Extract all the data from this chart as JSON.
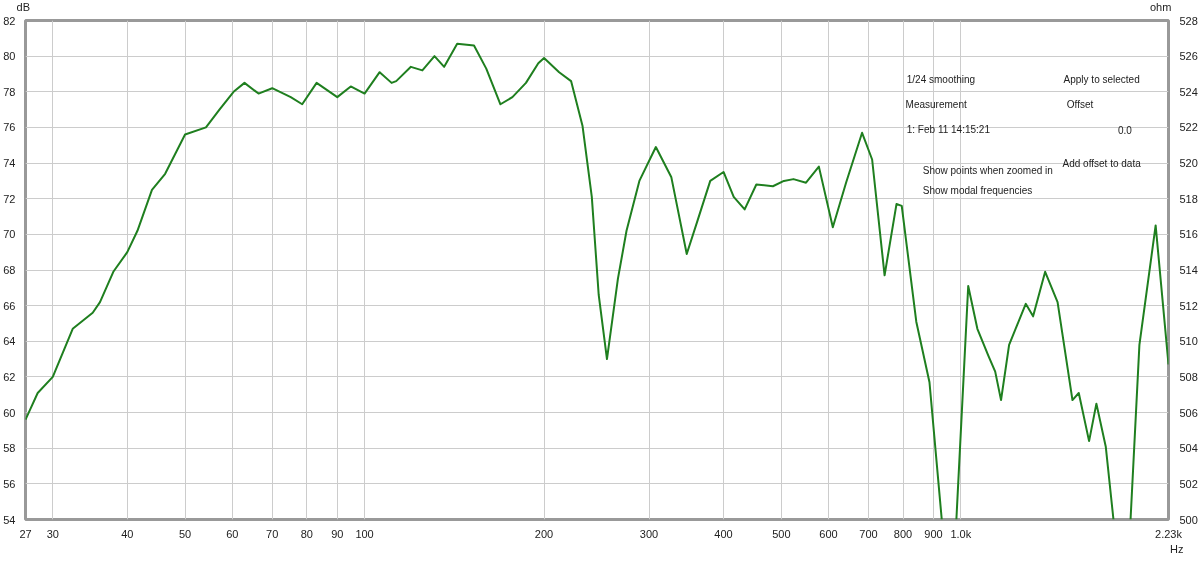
{
  "chart_data": {
    "type": "line",
    "xlabel": "Hz",
    "ylabel": "dB",
    "y2label": "ohm",
    "log": "x",
    "grid": true,
    "marker": "none",
    "line_style": "solid",
    "xlim": [
      27,
      2230
    ],
    "ylim": [
      54,
      82
    ],
    "y2lim": [
      500,
      528
    ],
    "xticks": [
      27,
      30,
      40,
      50,
      60,
      70,
      80,
      90,
      100,
      200,
      300,
      400,
      500,
      600,
      700,
      800,
      900,
      {
        "value": 1000,
        "label": "1.0k"
      },
      {
        "value": 2230,
        "label": "2.23k"
      }
    ],
    "yticks": [
      54,
      56,
      58,
      60,
      62,
      64,
      66,
      68,
      70,
      72,
      74,
      76,
      78,
      80,
      82
    ],
    "y2ticks": [
      500,
      502,
      504,
      506,
      508,
      510,
      512,
      514,
      516,
      518,
      520,
      522,
      524,
      526,
      528
    ],
    "series": [
      {
        "color": "#1f7f1f",
        "x": [
          27,
          28.3,
          30,
          32.4,
          35,
          36,
          37.9,
          40,
          41.6,
          44,
          46.3,
          50,
          54.2,
          57.1,
          60.3,
          62.9,
          66.4,
          70,
          75.2,
          78.6,
          83.1,
          90,
          94.8,
          100,
          106,
          111,
          113,
          119.6,
          125,
          131,
          136,
          143,
          152.6,
          160,
          169,
          177,
          186.5,
          195.6,
          200,
          212,
          222,
          232,
          240.5,
          247,
          255,
          266,
          275,
          289,
          308,
          327,
          347,
          362,
          380,
          400,
          416,
          434,
          454,
          484,
          505,
          524,
          550,
          578,
          610,
          642,
          683,
          710,
          745,
          780,
          796,
          842,
          886,
          929,
          955,
          983,
          1029,
          1066,
          1112,
          1142,
          1168,
          1205,
          1285,
          1322,
          1385,
          1453,
          1539,
          1577,
          1641,
          1688,
          1750,
          1803,
          1860,
          1926,
          1993,
          2122,
          2230
        ],
        "values": [
          59.6,
          61.1,
          62.0,
          64.7,
          65.6,
          66.2,
          67.9,
          69.0,
          70.2,
          72.5,
          73.4,
          75.6,
          76.0,
          77.0,
          78.0,
          78.5,
          77.9,
          78.2,
          77.7,
          77.3,
          78.5,
          77.7,
          78.3,
          77.9,
          79.1,
          78.5,
          78.6,
          79.4,
          79.2,
          80.0,
          79.4,
          80.7,
          80.6,
          79.3,
          77.3,
          77.7,
          78.5,
          79.6,
          79.9,
          79.1,
          78.6,
          76.1,
          72.1,
          66.6,
          63.0,
          67.5,
          70.2,
          73.0,
          74.9,
          73.2,
          68.9,
          70.8,
          73.0,
          73.5,
          72.1,
          71.4,
          72.8,
          72.7,
          73.0,
          73.1,
          72.9,
          73.8,
          70.4,
          72.9,
          75.7,
          74.2,
          67.7,
          71.7,
          71.6,
          65.1,
          61.7,
          54.0,
          null,
          54.0,
          67.1,
          64.7,
          63.2,
          62.3,
          60.7,
          63.8,
          66.1,
          65.4,
          67.9,
          66.2,
          60.7,
          61.1,
          58.4,
          60.5,
          58.1,
          54.0,
          null,
          54.0,
          63.8,
          70.5,
          62.7
        ]
      }
    ],
    "annotations": [
      "1/24 smoothing",
      "Apply to selected",
      "Measurement",
      "Offset",
      "1: Feb 11 14:15:21",
      "0.0",
      "Add offset to data",
      "Show points when zoomed in",
      "Show modal frequencies"
    ]
  }
}
